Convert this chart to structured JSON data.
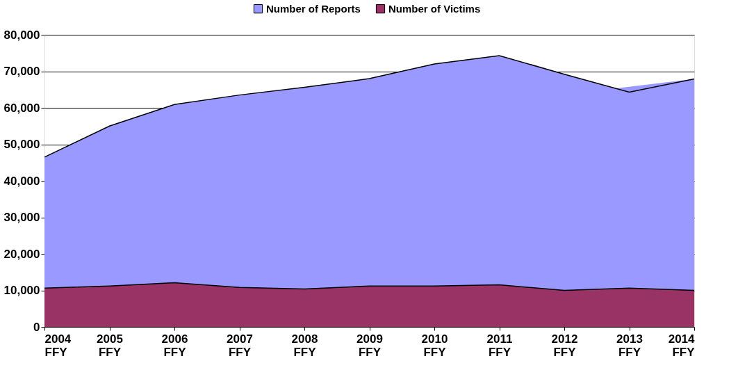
{
  "chart_data": {
    "type": "area",
    "categories": [
      "2004\nFFY",
      "2005\nFFY",
      "2006\nFFY",
      "2007\nFFY",
      "2008\nFFY",
      "2009\nFFY",
      "2010\nFFY",
      "2011\nFFY",
      "2012\nFFY",
      "2013\nFFY",
      "2014\nFFY"
    ],
    "series": [
      {
        "name": "Number of Reports",
        "color": "#9999ff",
        "values": [
          46500,
          55000,
          60900,
          63500,
          65600,
          68000,
          72000,
          74300,
          69200,
          64300,
          67900
        ]
      },
      {
        "name": "Number of Victims",
        "color": "#993366",
        "values": [
          10600,
          11200,
          12100,
          10800,
          10400,
          11200,
          11200,
          11500,
          10000,
          10600,
          10000
        ]
      }
    ],
    "ylim": [
      0,
      80000
    ],
    "yticks": [
      0,
      {
        "value": 10000,
        "label": "10,000"
      },
      {
        "value": 20000,
        "label": "20,000"
      },
      {
        "value": 30000,
        "label": "30,000"
      },
      {
        "value": 40000,
        "label": "40,000"
      },
      {
        "value": 50000,
        "label": "50,000"
      },
      {
        "value": 60000,
        "label": "60,000"
      },
      {
        "value": 70000,
        "label": "70,000"
      },
      {
        "value": 80000,
        "label": "80,000"
      }
    ],
    "grid": "y",
    "legend": "top"
  }
}
